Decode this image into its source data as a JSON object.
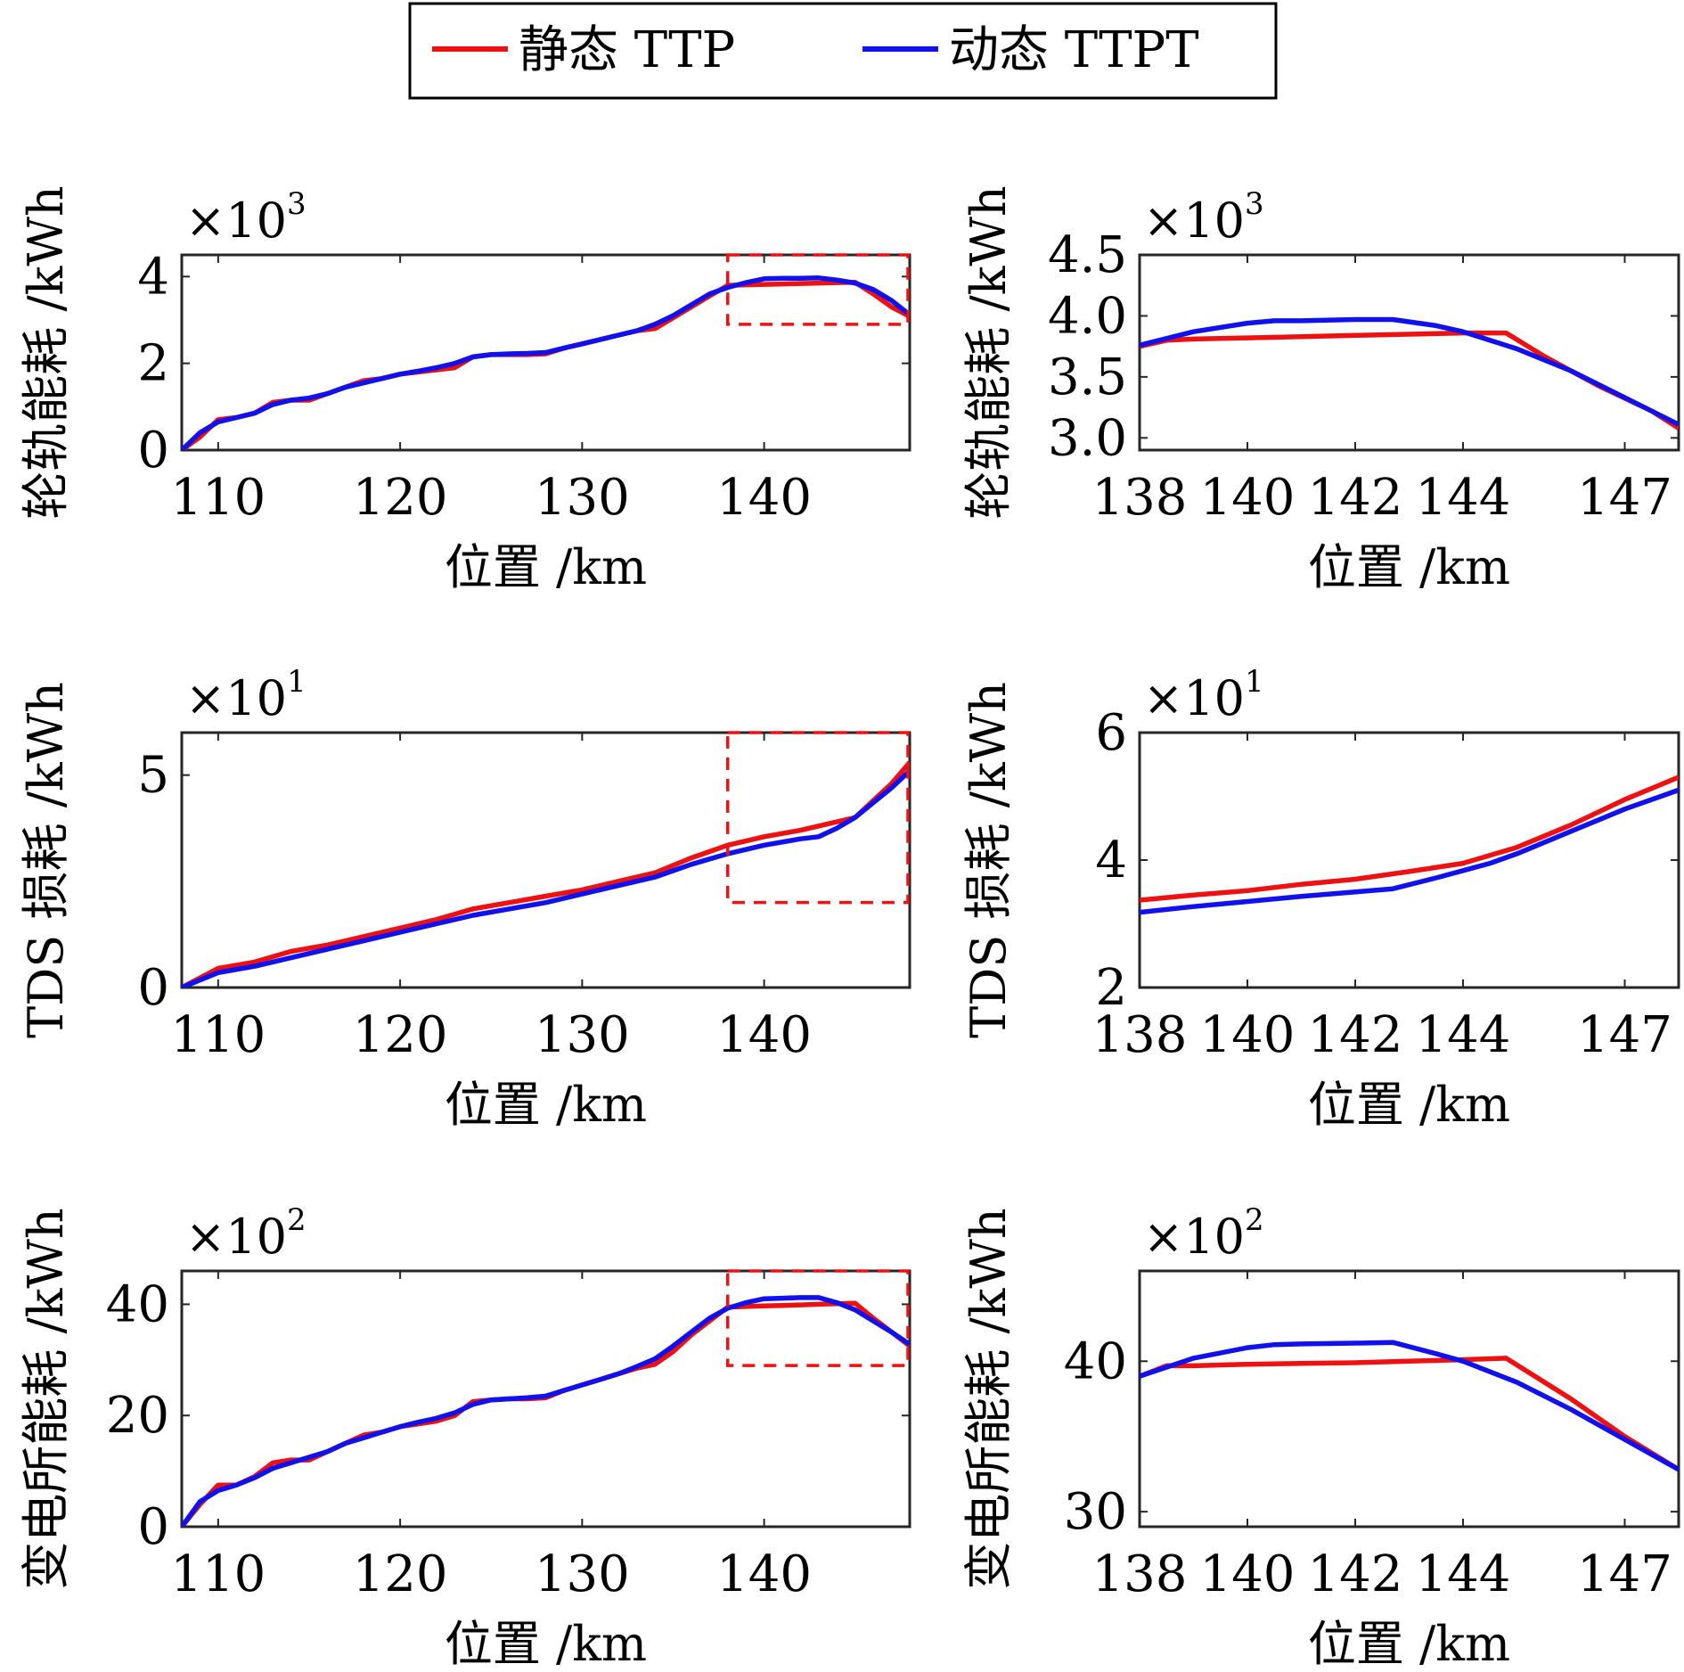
{
  "legend": {
    "entries": [
      {
        "label": "静态 TTP",
        "color": "#ee1111"
      },
      {
        "label": "动态 TTPT",
        "color": "#1111ee"
      }
    ]
  },
  "zoom_box_color": "#ee1111",
  "chart_data": [
    {
      "type": "line",
      "xlabel": "位置 /km",
      "ylabel": "轮轨能耗 /kWh",
      "y_exponent": "×10",
      "y_exponent_power": "3",
      "xlim": [
        108,
        148
      ],
      "ylim": [
        0,
        4.5
      ],
      "xticks": [
        110,
        120,
        130,
        140
      ],
      "yticks": [
        0,
        2,
        4
      ],
      "yticklabels": [
        "0",
        "2",
        "4"
      ],
      "zoom_box": {
        "x": [
          138,
          148
        ],
        "y": [
          2.9,
          4.5
        ]
      },
      "series": [
        {
          "name": "静态 TTP",
          "color": "#ee1111",
          "x": [
            108,
            109,
            110,
            111,
            112,
            113,
            114,
            115,
            116,
            117,
            118,
            119,
            120,
            121,
            122,
            123,
            124,
            125,
            126,
            127,
            128,
            129,
            130,
            131,
            132,
            133,
            134,
            135,
            136,
            137,
            138,
            139,
            140,
            141,
            142,
            143,
            144,
            145,
            146,
            147,
            148
          ],
          "y": [
            0.0,
            0.3,
            0.7,
            0.75,
            0.85,
            1.1,
            1.15,
            1.15,
            1.3,
            1.45,
            1.6,
            1.65,
            1.75,
            1.8,
            1.85,
            1.9,
            2.15,
            2.2,
            2.2,
            2.2,
            2.22,
            2.35,
            2.45,
            2.55,
            2.65,
            2.75,
            2.8,
            3.05,
            3.3,
            3.55,
            3.8,
            3.81,
            3.82,
            3.83,
            3.84,
            3.85,
            3.86,
            3.87,
            3.6,
            3.3,
            3.08
          ]
        },
        {
          "name": "动态 TTPT",
          "color": "#1111ee",
          "x": [
            108,
            109,
            110,
            111,
            112,
            113,
            114,
            115,
            116,
            117,
            118,
            119,
            120,
            121,
            122,
            123,
            124,
            125,
            126,
            127,
            128,
            129,
            130,
            131,
            132,
            133,
            134,
            135,
            136,
            137,
            138,
            139,
            140,
            141,
            142,
            143,
            144,
            145,
            146,
            147,
            148
          ],
          "y": [
            0.0,
            0.4,
            0.65,
            0.75,
            0.85,
            1.05,
            1.15,
            1.2,
            1.3,
            1.45,
            1.55,
            1.65,
            1.75,
            1.82,
            1.9,
            2.0,
            2.15,
            2.2,
            2.22,
            2.23,
            2.25,
            2.35,
            2.45,
            2.55,
            2.65,
            2.75,
            2.9,
            3.1,
            3.35,
            3.6,
            3.75,
            3.86,
            3.95,
            3.96,
            3.96,
            3.97,
            3.92,
            3.85,
            3.7,
            3.45,
            3.12
          ]
        }
      ]
    },
    {
      "type": "line",
      "xlabel": "位置 /km",
      "ylabel": "轮轨能耗 /kWh",
      "y_exponent": "×10",
      "y_exponent_power": "3",
      "xlim": [
        138,
        148
      ],
      "ylim": [
        2.9,
        4.5
      ],
      "xticks": [
        138,
        140,
        142,
        144,
        147
      ],
      "yticks": [
        3.0,
        3.5,
        4.0,
        4.5
      ],
      "yticklabels": [
        "3.0",
        "3.5",
        "4.0",
        "4.5"
      ],
      "series": [
        {
          "name": "静态 TTP",
          "color": "#ee1111",
          "x": [
            138,
            138.5,
            139,
            140,
            141,
            142,
            143,
            144,
            144.8,
            145.5,
            146.5,
            147.5,
            148
          ],
          "y": [
            3.75,
            3.8,
            3.81,
            3.82,
            3.83,
            3.84,
            3.85,
            3.86,
            3.86,
            3.67,
            3.43,
            3.22,
            3.08
          ]
        },
        {
          "name": "动态 TTPT",
          "color": "#1111ee",
          "x": [
            138,
            139,
            140,
            140.5,
            141,
            142,
            142.7,
            143.5,
            144,
            145,
            146,
            147,
            148
          ],
          "y": [
            3.76,
            3.87,
            3.94,
            3.96,
            3.96,
            3.97,
            3.97,
            3.92,
            3.87,
            3.73,
            3.55,
            3.33,
            3.11
          ]
        }
      ]
    },
    {
      "type": "line",
      "xlabel": "位置 /km",
      "ylabel": "TDS 损耗 /kWh",
      "y_exponent": "×10",
      "y_exponent_power": "1",
      "xlim": [
        108,
        148
      ],
      "ylim": [
        0,
        6
      ],
      "xticks": [
        110,
        120,
        130,
        140
      ],
      "yticks": [
        0,
        5
      ],
      "yticklabels": [
        "0",
        "5"
      ],
      "zoom_box": {
        "x": [
          138,
          148
        ],
        "y": [
          2,
          6
        ]
      },
      "series": [
        {
          "name": "静态 TTP",
          "color": "#ee1111",
          "x": [
            108,
            110,
            112,
            114,
            116,
            118,
            120,
            122,
            124,
            126,
            128,
            130,
            132,
            134,
            136,
            138,
            140,
            142,
            144,
            145,
            146,
            147,
            148
          ],
          "y": [
            0.0,
            0.45,
            0.6,
            0.85,
            1.0,
            1.2,
            1.4,
            1.6,
            1.85,
            2.0,
            2.15,
            2.3,
            2.5,
            2.7,
            3.05,
            3.35,
            3.55,
            3.7,
            3.9,
            4.0,
            4.4,
            4.8,
            5.3
          ]
        },
        {
          "name": "动态 TTPT",
          "color": "#1111ee",
          "x": [
            108,
            110,
            112,
            114,
            116,
            118,
            120,
            122,
            124,
            126,
            128,
            130,
            132,
            134,
            136,
            138,
            140,
            142,
            143,
            144,
            145,
            146,
            147,
            148
          ],
          "y": [
            0.0,
            0.35,
            0.5,
            0.7,
            0.9,
            1.1,
            1.3,
            1.5,
            1.7,
            1.85,
            2.0,
            2.2,
            2.4,
            2.6,
            2.9,
            3.15,
            3.35,
            3.5,
            3.55,
            3.75,
            4.0,
            4.35,
            4.7,
            5.1
          ]
        }
      ]
    },
    {
      "type": "line",
      "xlabel": "位置 /km",
      "ylabel": "TDS 损耗 /kWh",
      "y_exponent": "×10",
      "y_exponent_power": "1",
      "xlim": [
        138,
        148
      ],
      "ylim": [
        2,
        6
      ],
      "xticks": [
        138,
        140,
        142,
        144,
        147
      ],
      "yticks": [
        2,
        4,
        6
      ],
      "yticklabels": [
        "2",
        "4",
        "6"
      ],
      "series": [
        {
          "name": "静态 TTP",
          "color": "#ee1111",
          "x": [
            138,
            139,
            140,
            141,
            142,
            143,
            144,
            145,
            146,
            147,
            148
          ],
          "y": [
            3.37,
            3.45,
            3.52,
            3.62,
            3.7,
            3.82,
            3.95,
            4.2,
            4.55,
            4.95,
            5.3
          ]
        },
        {
          "name": "动态 TTPT",
          "color": "#1111ee",
          "x": [
            138,
            139,
            140,
            141,
            142,
            142.7,
            143.5,
            144.5,
            145,
            146,
            147,
            148
          ],
          "y": [
            3.18,
            3.27,
            3.35,
            3.43,
            3.5,
            3.55,
            3.72,
            3.95,
            4.1,
            4.45,
            4.8,
            5.1
          ]
        }
      ]
    },
    {
      "type": "line",
      "xlabel": "位置 /km",
      "ylabel": "变电所能耗 /kWh",
      "y_exponent": "×10",
      "y_exponent_power": "2",
      "xlim": [
        108,
        148
      ],
      "ylim": [
        0,
        46
      ],
      "xticks": [
        110,
        120,
        130,
        140
      ],
      "yticks": [
        0,
        20,
        40
      ],
      "yticklabels": [
        "0",
        "20",
        "40"
      ],
      "zoom_box": {
        "x": [
          138,
          148
        ],
        "y": [
          29,
          46
        ]
      },
      "series": [
        {
          "name": "静态 TTP",
          "color": "#ee1111",
          "x": [
            108,
            109,
            110,
            111,
            112,
            113,
            114,
            115,
            116,
            117,
            118,
            119,
            120,
            121,
            122,
            123,
            124,
            125,
            126,
            127,
            128,
            129,
            130,
            131,
            132,
            133,
            134,
            135,
            136,
            137,
            138,
            139,
            140,
            141,
            142,
            143,
            144,
            145,
            146,
            147,
            148
          ],
          "y": [
            0,
            4,
            7.5,
            7.5,
            9,
            11.5,
            12,
            12,
            13.5,
            15,
            16.5,
            17,
            18,
            18.5,
            19,
            20,
            22.5,
            22.8,
            23,
            23,
            23.2,
            24.5,
            25.5,
            26.5,
            27.5,
            28.5,
            29.2,
            31.5,
            34.5,
            37,
            39.5,
            39.6,
            39.7,
            39.8,
            39.9,
            40,
            40.1,
            40.2,
            37.5,
            35,
            32.5
          ]
        },
        {
          "name": "动态 TTPT",
          "color": "#1111ee",
          "x": [
            108,
            109,
            110,
            111,
            112,
            113,
            114,
            115,
            116,
            117,
            118,
            119,
            120,
            121,
            122,
            123,
            124,
            125,
            126,
            127,
            128,
            129,
            130,
            131,
            132,
            133,
            134,
            135,
            136,
            137,
            138,
            139,
            140,
            141,
            142,
            143,
            144,
            145,
            146,
            147,
            148
          ],
          "y": [
            0,
            4.5,
            6.5,
            7.5,
            8.8,
            10.5,
            11.5,
            12.5,
            13.5,
            15,
            16,
            17,
            18,
            18.8,
            19.5,
            20.5,
            22,
            22.8,
            23,
            23.2,
            23.5,
            24.5,
            25.5,
            26.5,
            27.5,
            28.8,
            30.2,
            32.5,
            35,
            37.5,
            39.3,
            40.3,
            41,
            41.1,
            41.2,
            41.2,
            40.3,
            39,
            37,
            35,
            32.8
          ]
        }
      ]
    },
    {
      "type": "line",
      "xlabel": "位置 /km",
      "ylabel": "变电所能耗 /kWh",
      "y_exponent": "×10",
      "y_exponent_power": "2",
      "xlim": [
        138,
        148
      ],
      "ylim": [
        29,
        46
      ],
      "xticks": [
        138,
        140,
        142,
        144,
        147
      ],
      "yticks": [
        30,
        40
      ],
      "yticklabels": [
        "30",
        "40"
      ],
      "series": [
        {
          "name": "静态 TTP",
          "color": "#ee1111",
          "x": [
            138,
            138.5,
            139,
            140,
            141,
            142,
            143,
            144,
            144.8,
            146,
            147,
            148
          ],
          "y": [
            39.0,
            39.7,
            39.7,
            39.8,
            39.85,
            39.9,
            40.0,
            40.1,
            40.2,
            37.5,
            35,
            32.8
          ]
        },
        {
          "name": "动态 TTPT",
          "color": "#1111ee",
          "x": [
            138,
            139,
            140,
            140.5,
            141,
            142,
            142.7,
            143.5,
            144,
            145,
            146,
            147,
            148
          ],
          "y": [
            39.0,
            40.2,
            40.9,
            41.1,
            41.15,
            41.2,
            41.25,
            40.5,
            40.0,
            38.6,
            36.8,
            34.8,
            32.8
          ]
        }
      ]
    }
  ]
}
